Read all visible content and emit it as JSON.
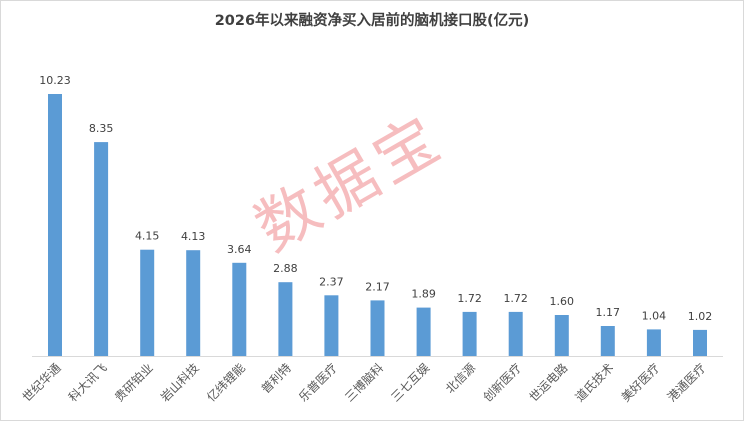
{
  "chart_data": {
    "type": "bar",
    "title": "2026年以来融资净买入居前的脑机接口股(亿元)",
    "categories": [
      "世纪华通",
      "科大讯飞",
      "贵研铂业",
      "岩山科技",
      "亿纬锂能",
      "普利特",
      "乐普医疗",
      "三博脑科",
      "三七互娱",
      "北信源",
      "创新医疗",
      "世运电路",
      "道氏技术",
      "美好医疗",
      "港通医疗"
    ],
    "values": [
      10.23,
      8.35,
      4.15,
      4.13,
      3.64,
      2.88,
      2.37,
      2.17,
      1.89,
      1.72,
      1.72,
      1.6,
      1.17,
      1.04,
      1.02
    ],
    "value_labels": [
      "10.23",
      "8.35",
      "4.15",
      "4.13",
      "3.64",
      "2.88",
      "2.37",
      "2.17",
      "1.89",
      "1.72",
      "1.72",
      "1.60",
      "1.17",
      "1.04",
      "1.02"
    ],
    "bar_color": "#5b9bd5",
    "ylim": [
      0,
      11
    ],
    "grid": false,
    "legend": "none"
  },
  "watermark": "数据宝"
}
